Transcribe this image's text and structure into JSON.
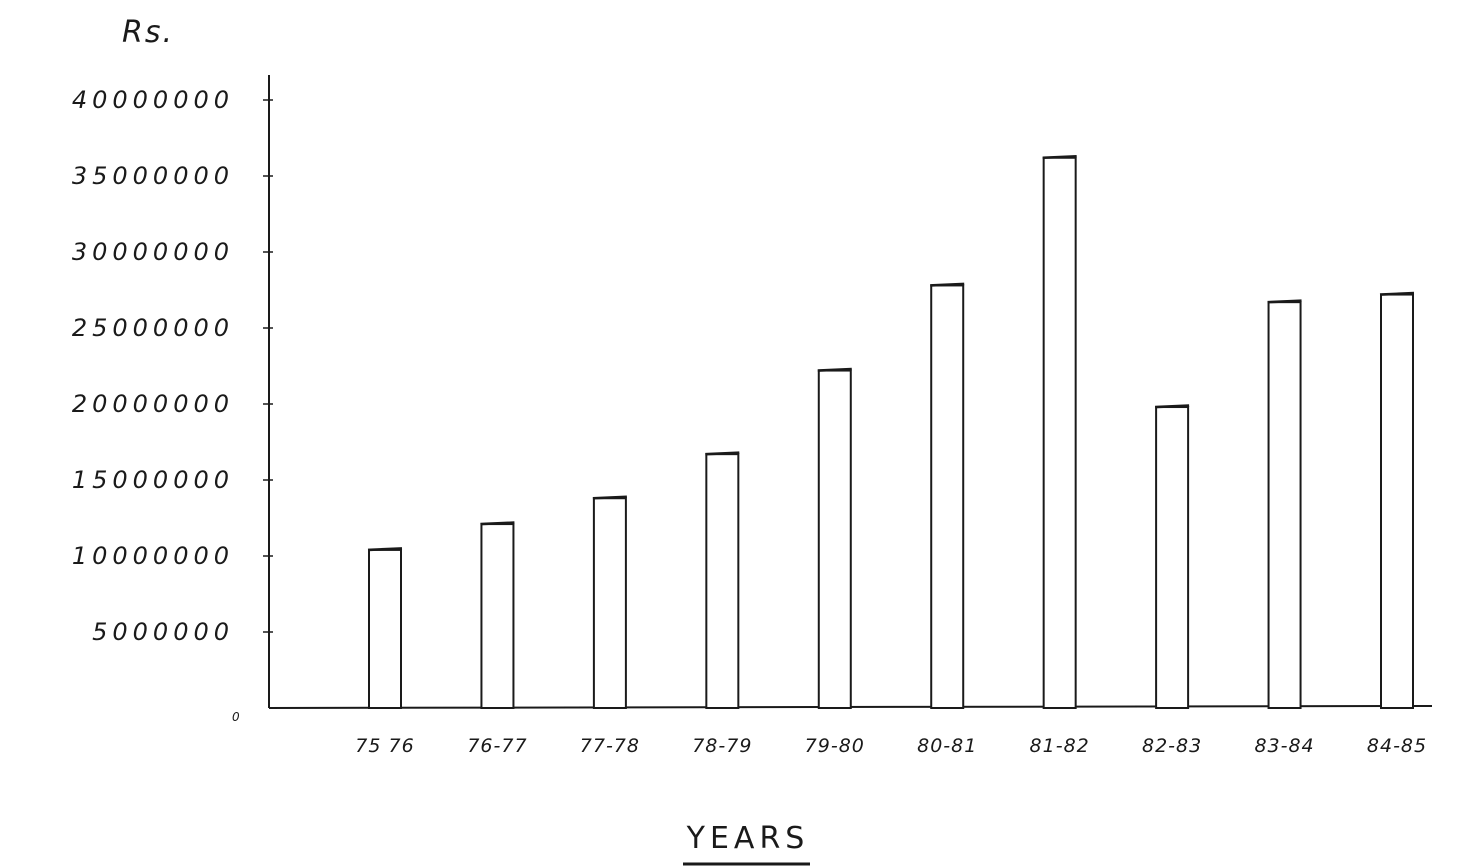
{
  "chart_data": {
    "type": "bar",
    "ylabel": "Rs.",
    "xlabel": "YEARS",
    "zero_label": "0",
    "categories": [
      "75 76",
      "76-77",
      "77-78",
      "78-79",
      "79-80",
      "80-81",
      "81-82",
      "82-83",
      "83-84",
      "84-85"
    ],
    "values": [
      10400000,
      12100000,
      13800000,
      16700000,
      22200000,
      27800000,
      36200000,
      19800000,
      26700000,
      27200000
    ],
    "ylim": [
      0,
      40000000
    ],
    "yticks": [
      {
        "value": 5000000,
        "label": "5000000"
      },
      {
        "value": 10000000,
        "label": "10000000"
      },
      {
        "value": 15000000,
        "label": "15000000"
      },
      {
        "value": 20000000,
        "label": "20000000"
      },
      {
        "value": 25000000,
        "label": "25000000"
      },
      {
        "value": 30000000,
        "label": "30000000"
      },
      {
        "value": 35000000,
        "label": "35000000"
      },
      {
        "value": 40000000,
        "label": "40000000"
      }
    ],
    "grid": false,
    "legend": "none",
    "colors": {
      "ink": "#1a1a1a",
      "background": "#ffffff"
    }
  }
}
